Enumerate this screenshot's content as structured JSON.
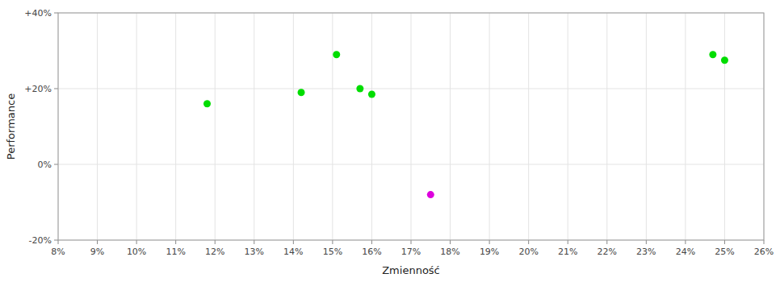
{
  "chart_data": {
    "type": "scatter",
    "x_label": "Zmienność",
    "y_label": "Performance",
    "xlim": [
      0.08,
      0.26
    ],
    "ylim": [
      -0.2,
      0.4
    ],
    "xticks": [
      {
        "value": 0.08,
        "label": "8%"
      },
      {
        "value": 0.09,
        "label": "9%"
      },
      {
        "value": 0.1,
        "label": "10%"
      },
      {
        "value": 0.11,
        "label": "11%"
      },
      {
        "value": 0.12,
        "label": "12%"
      },
      {
        "value": 0.13,
        "label": "13%"
      },
      {
        "value": 0.14,
        "label": "14%"
      },
      {
        "value": 0.15,
        "label": "15%"
      },
      {
        "value": 0.16,
        "label": "16%"
      },
      {
        "value": 0.17,
        "label": "17%"
      },
      {
        "value": 0.18,
        "label": "18%"
      },
      {
        "value": 0.19,
        "label": "19%"
      },
      {
        "value": 0.2,
        "label": "20%"
      },
      {
        "value": 0.21,
        "label": "21%"
      },
      {
        "value": 0.22,
        "label": "22%"
      },
      {
        "value": 0.23,
        "label": "23%"
      },
      {
        "value": 0.24,
        "label": "24%"
      },
      {
        "value": 0.25,
        "label": "25%"
      },
      {
        "value": 0.26,
        "label": "26%"
      }
    ],
    "yticks": [
      {
        "value": -0.2,
        "label": "-20%"
      },
      {
        "value": 0.0,
        "label": "0%"
      },
      {
        "value": 0.2,
        "label": "+20%"
      },
      {
        "value": 0.4,
        "label": "+40%"
      }
    ],
    "grid": true,
    "series": [
      {
        "color": "#00dd00",
        "x": [
          0.118,
          0.142,
          0.151,
          0.157,
          0.16,
          0.247,
          0.25
        ],
        "values": [
          0.16,
          0.19,
          0.29,
          0.2,
          0.185,
          0.29,
          0.275
        ]
      },
      {
        "color": "#dd00dd",
        "x": [
          0.175
        ],
        "values": [
          -0.08
        ]
      }
    ]
  }
}
